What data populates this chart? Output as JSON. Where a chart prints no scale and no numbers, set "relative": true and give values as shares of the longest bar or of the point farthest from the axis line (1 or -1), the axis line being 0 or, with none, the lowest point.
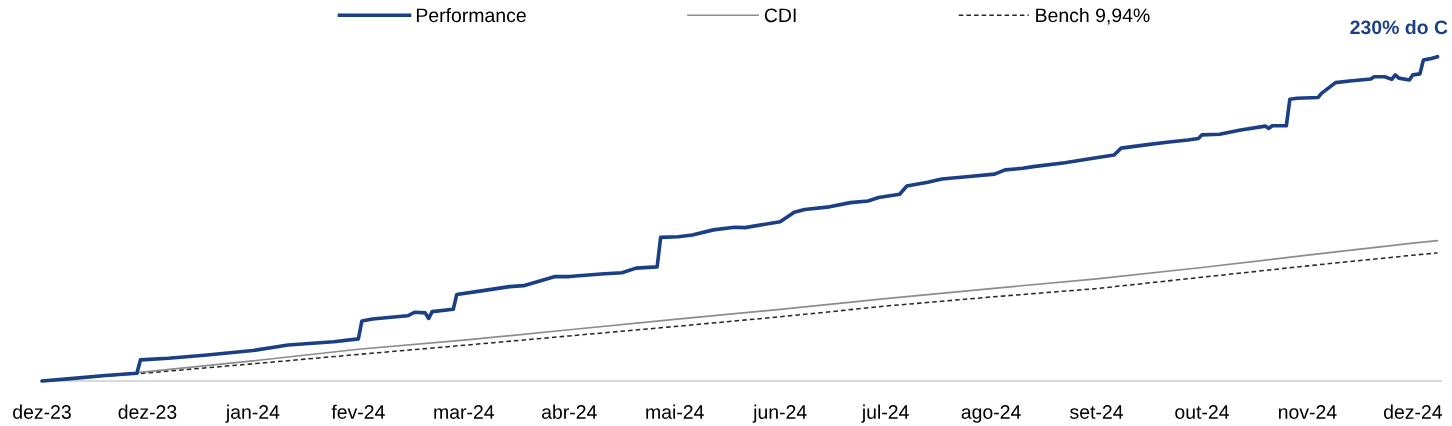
{
  "chart_data": {
    "type": "line",
    "relative": true,
    "legend": "top",
    "grid": false,
    "marker": "none",
    "xlim": [
      "2023-12-01",
      "2025-01-02"
    ],
    "xticks": [
      {
        "value": "2023-12-01",
        "label": "dez-23"
      },
      {
        "value": "2023-12-31",
        "label": "dez-23"
      },
      {
        "value": "2024-01-30",
        "label": "jan-24"
      },
      {
        "value": "2024-02-29",
        "label": "fev-24"
      },
      {
        "value": "2024-03-30",
        "label": "mar-24"
      },
      {
        "value": "2024-04-29",
        "label": "abr-24"
      },
      {
        "value": "2024-05-29",
        "label": "mai-24"
      },
      {
        "value": "2024-06-28",
        "label": "jun-24"
      },
      {
        "value": "2024-07-28",
        "label": "jul-24"
      },
      {
        "value": "2024-08-27",
        "label": "ago-24"
      },
      {
        "value": "2024-09-26",
        "label": "set-24"
      },
      {
        "value": "2024-10-26",
        "label": "out-24"
      },
      {
        "value": "2024-11-25",
        "label": "nov-24"
      },
      {
        "value": "2024-12-25",
        "label": "dez-24"
      }
    ],
    "annotations": [
      "230% do C"
    ],
    "series": [
      {
        "name": "Performance",
        "color": "#1a3f85",
        "x": [
          "2023-12-01",
          "2023-12-10",
          "2023-12-19",
          "2023-12-28",
          "2023-12-29",
          "2024-01-06",
          "2024-01-17",
          "2024-01-30",
          "2024-02-09",
          "2024-02-22",
          "2024-02-29",
          "2024-03-01",
          "2024-03-04",
          "2024-03-14",
          "2024-03-16",
          "2024-03-19",
          "2024-03-20",
          "2024-03-21",
          "2024-03-27",
          "2024-03-28",
          "2024-04-04",
          "2024-04-12",
          "2024-04-16",
          "2024-04-25",
          "2024-04-29",
          "2024-05-08",
          "2024-05-14",
          "2024-05-18",
          "2024-05-24",
          "2024-05-25",
          "2024-05-30",
          "2024-06-03",
          "2024-06-09",
          "2024-06-15",
          "2024-06-18",
          "2024-06-28",
          "2024-07-02",
          "2024-07-05",
          "2024-07-12",
          "2024-07-18",
          "2024-07-23",
          "2024-07-26",
          "2024-08-01",
          "2024-08-03",
          "2024-08-09",
          "2024-08-13",
          "2024-08-20",
          "2024-08-28",
          "2024-08-31",
          "2024-09-05",
          "2024-09-08",
          "2024-09-17",
          "2024-09-25",
          "2024-10-01",
          "2024-10-03",
          "2024-10-10",
          "2024-10-16",
          "2024-10-22",
          "2024-10-25",
          "2024-10-26",
          "2024-10-31",
          "2024-11-06",
          "2024-11-13",
          "2024-11-14",
          "2024-11-15",
          "2024-11-19",
          "2024-11-20",
          "2024-11-22",
          "2024-11-28",
          "2024-11-29",
          "2024-12-03",
          "2024-12-07",
          "2024-12-13",
          "2024-12-14",
          "2024-12-17",
          "2024-12-19",
          "2024-12-20",
          "2024-12-21",
          "2024-12-24",
          "2024-12-25",
          "2024-12-27",
          "2024-12-28",
          "2024-12-30",
          "2025-01-01"
        ],
        "values": [
          0.0,
          0.008,
          0.017,
          0.024,
          0.065,
          0.07,
          0.08,
          0.094,
          0.111,
          0.121,
          0.13,
          0.185,
          0.191,
          0.201,
          0.212,
          0.21,
          0.193,
          0.214,
          0.221,
          0.267,
          0.278,
          0.291,
          0.294,
          0.322,
          0.322,
          0.33,
          0.334,
          0.348,
          0.352,
          0.443,
          0.445,
          0.45,
          0.466,
          0.474,
          0.473,
          0.491,
          0.52,
          0.529,
          0.537,
          0.55,
          0.555,
          0.566,
          0.576,
          0.601,
          0.613,
          0.623,
          0.63,
          0.638,
          0.651,
          0.656,
          0.661,
          0.673,
          0.687,
          0.697,
          0.718,
          0.728,
          0.736,
          0.743,
          0.748,
          0.759,
          0.761,
          0.774,
          0.786,
          0.779,
          0.787,
          0.787,
          0.869,
          0.872,
          0.874,
          0.887,
          0.92,
          0.925,
          0.931,
          0.938,
          0.938,
          0.93,
          0.944,
          0.934,
          0.928,
          0.944,
          0.947,
          0.99,
          0.994,
          1.0
        ]
      },
      {
        "name": "CDI",
        "color": "#8c8c8c",
        "x": [
          "2023-12-01",
          "2023-12-31",
          "2024-01-30",
          "2024-02-29",
          "2024-03-30",
          "2024-04-29",
          "2024-05-29",
          "2024-06-28",
          "2024-07-28",
          "2024-08-27",
          "2024-09-26",
          "2024-10-26",
          "2024-11-25",
          "2024-12-25",
          "2025-01-01"
        ],
        "values": [
          0.0,
          0.029,
          0.062,
          0.098,
          0.126,
          0.158,
          0.19,
          0.221,
          0.254,
          0.285,
          0.315,
          0.35,
          0.388,
          0.425,
          0.433
        ]
      },
      {
        "name": "Bench 9,94%",
        "color": "#262626",
        "line_style": "dashed",
        "x": [
          "2023-12-01",
          "2023-12-31",
          "2024-01-30",
          "2024-02-29",
          "2024-03-30",
          "2024-04-29",
          "2024-05-29",
          "2024-06-28",
          "2024-07-28",
          "2024-08-27",
          "2024-09-26",
          "2024-10-26",
          "2024-11-25",
          "2024-12-25",
          "2025-01-01"
        ],
        "values": [
          0.0,
          0.025,
          0.053,
          0.082,
          0.11,
          0.139,
          0.168,
          0.198,
          0.231,
          0.259,
          0.285,
          0.32,
          0.355,
          0.388,
          0.395
        ]
      }
    ]
  }
}
